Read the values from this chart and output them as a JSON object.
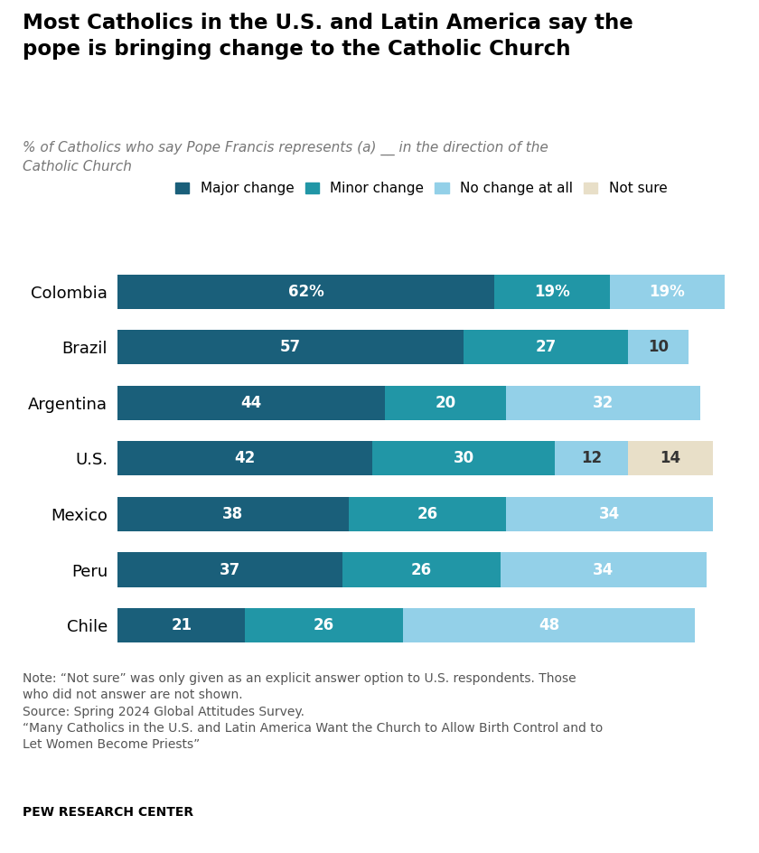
{
  "title": "Most Catholics in the U.S. and Latin America say the\npope is bringing change to the Catholic Church",
  "subtitle": "% of Catholics who say Pope Francis represents (a) __ in the direction of the\nCatholic Church",
  "categories": [
    "Colombia",
    "Brazil",
    "Argentina",
    "U.S.",
    "Mexico",
    "Peru",
    "Chile"
  ],
  "major_change": [
    62,
    57,
    44,
    42,
    38,
    37,
    21
  ],
  "minor_change": [
    19,
    27,
    20,
    30,
    26,
    26,
    26
  ],
  "no_change": [
    19,
    10,
    32,
    12,
    34,
    34,
    48
  ],
  "not_sure": [
    0,
    0,
    0,
    14,
    0,
    0,
    0
  ],
  "major_label": [
    "62%",
    "57",
    "44",
    "42",
    "38",
    "37",
    "21"
  ],
  "minor_label": [
    "19%",
    "27",
    "20",
    "30",
    "26",
    "26",
    "26"
  ],
  "no_change_label": [
    "19%",
    "10",
    "32",
    "12",
    "34",
    "34",
    "48"
  ],
  "not_sure_label": [
    "",
    "",
    "",
    "14",
    "",
    "",
    ""
  ],
  "color_major": "#1a5f7a",
  "color_minor": "#2196a6",
  "color_no_change": "#93d0e8",
  "color_not_sure": "#e8dfc8",
  "legend_labels": [
    "Major change",
    "Minor change",
    "No change at all",
    "Not sure"
  ],
  "note": "Note: “Not sure” was only given as an explicit answer option to U.S. respondents. Those\nwho did not answer are not shown.\nSource: Spring 2024 Global Attitudes Survey.\n“Many Catholics in the U.S. and Latin America Want the Church to Allow Birth Control and to\nLet Women Become Priests”",
  "source_label": "PEW RESEARCH CENTER",
  "background_color": "#ffffff",
  "bar_height": 0.62
}
